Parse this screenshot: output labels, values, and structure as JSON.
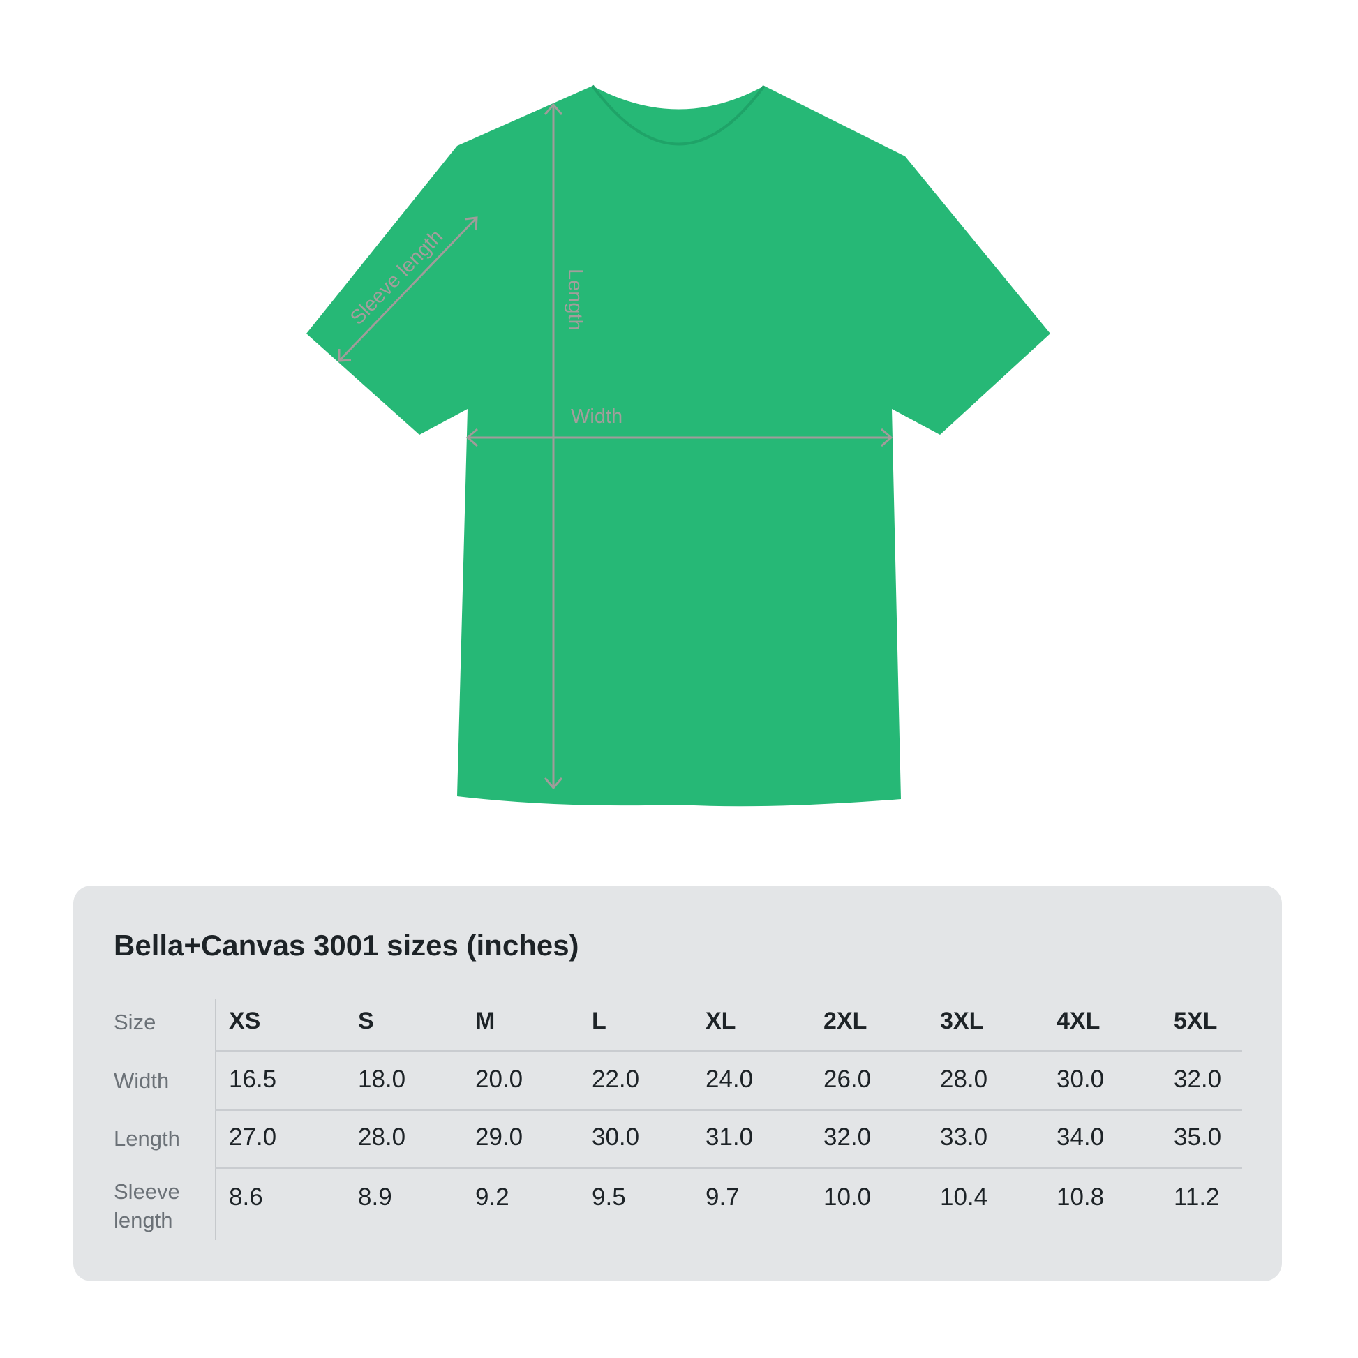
{
  "colors": {
    "shirt": "#26b876",
    "measure_lines": "#a09c9a",
    "panel_background": "#e3e5e7",
    "text": "#1d2327",
    "label_text": "#6b7177"
  },
  "diagram": {
    "length_label": "Length",
    "width_label": "Width",
    "sleeve_label": "Sleeve length"
  },
  "size_table": {
    "title": "Bella+Canvas 3001 sizes (inches)",
    "row_headers": [
      "Size",
      "Width",
      "Length",
      "Sleeve length"
    ],
    "sizes": [
      "XS",
      "S",
      "M",
      "L",
      "XL",
      "2XL",
      "3XL",
      "4XL",
      "5XL"
    ],
    "width": [
      "16.5",
      "18.0",
      "20.0",
      "22.0",
      "24.0",
      "26.0",
      "28.0",
      "30.0",
      "32.0"
    ],
    "length": [
      "27.0",
      "28.0",
      "29.0",
      "30.0",
      "31.0",
      "32.0",
      "33.0",
      "34.0",
      "35.0"
    ],
    "sleeve_length": [
      "8.6",
      "8.9",
      "9.2",
      "9.5",
      "9.7",
      "10.0",
      "10.4",
      "10.8",
      "11.2"
    ]
  }
}
